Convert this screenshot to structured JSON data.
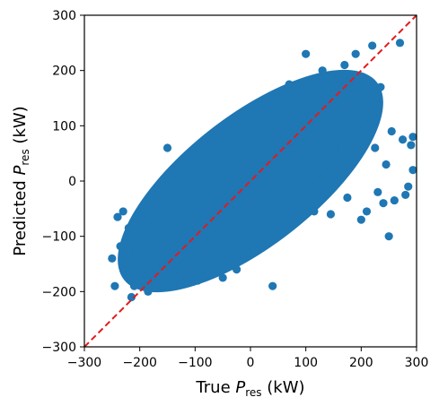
{
  "chart_data": {
    "type": "scatter",
    "title": "",
    "xlabel": {
      "prefix": "True ",
      "var": "P",
      "sub": "res",
      "suffix": " (kW)"
    },
    "ylabel": {
      "prefix": "Predicted ",
      "var": "P",
      "sub": "res",
      "suffix": " (kW)"
    },
    "xlim": [
      -300,
      300
    ],
    "ylim": [
      -300,
      300
    ],
    "xticks": [
      -300,
      -200,
      -100,
      0,
      100,
      200,
      300
    ],
    "yticks": [
      -300,
      -200,
      -100,
      0,
      100,
      200,
      300
    ],
    "xtick_labels": [
      "−300",
      "−200",
      "−100",
      "0",
      "100",
      "200",
      "300"
    ],
    "ytick_labels": [
      "−300",
      "−200",
      "−100",
      "0",
      "100",
      "200",
      "300"
    ],
    "grid": false,
    "point_color": "#1f77b4",
    "reference_line": {
      "from": [
        -300,
        -300
      ],
      "to": [
        300,
        300
      ],
      "style": "dashed",
      "color": "#e41a1c"
    },
    "series": [
      {
        "points": [
          [
            -250,
            -140
          ],
          [
            -245,
            -190
          ],
          [
            -240,
            -65
          ],
          [
            -235,
            -118
          ],
          [
            -230,
            -55
          ],
          [
            -225,
            -150
          ],
          [
            -220,
            -85
          ],
          [
            -215,
            -210
          ],
          [
            -210,
            -190
          ],
          [
            -205,
            -130
          ],
          [
            -200,
            -100
          ],
          [
            -200,
            -165
          ],
          [
            -195,
            -60
          ],
          [
            -190,
            -110
          ],
          [
            -185,
            -200
          ],
          [
            -185,
            -140
          ],
          [
            -180,
            -125
          ],
          [
            -175,
            -80
          ],
          [
            -170,
            -160
          ],
          [
            -165,
            -35
          ],
          [
            -160,
            -190
          ],
          [
            -155,
            -100
          ],
          [
            -150,
            60
          ],
          [
            -145,
            -150
          ],
          [
            -140,
            -120
          ],
          [
            -135,
            -30
          ],
          [
            -130,
            -175
          ],
          [
            -125,
            -70
          ],
          [
            -120,
            -150
          ],
          [
            -115,
            10
          ],
          [
            -110,
            -130
          ],
          [
            -105,
            -95
          ],
          [
            -100,
            45
          ],
          [
            -95,
            -180
          ],
          [
            -90,
            -60
          ],
          [
            -85,
            -160
          ],
          [
            -80,
            20
          ],
          [
            -75,
            -110
          ],
          [
            -70,
            -10
          ],
          [
            -65,
            -150
          ],
          [
            -60,
            85
          ],
          [
            -55,
            -90
          ],
          [
            -50,
            -175
          ],
          [
            -45,
            35
          ],
          [
            -40,
            -130
          ],
          [
            -35,
            65
          ],
          [
            -30,
            -55
          ],
          [
            -25,
            -160
          ],
          [
            -20,
            100
          ],
          [
            -15,
            -85
          ],
          [
            -10,
            25
          ],
          [
            -5,
            -130
          ],
          [
            0,
            70
          ],
          [
            5,
            -45
          ],
          [
            10,
            125
          ],
          [
            15,
            -110
          ],
          [
            20,
            40
          ],
          [
            25,
            -65
          ],
          [
            30,
            135
          ],
          [
            35,
            -20
          ],
          [
            40,
            -190
          ],
          [
            45,
            85
          ],
          [
            50,
            -30
          ],
          [
            55,
            150
          ],
          [
            60,
            -85
          ],
          [
            65,
            40
          ],
          [
            70,
            175
          ],
          [
            75,
            -40
          ],
          [
            80,
            95
          ],
          [
            85,
            -65
          ],
          [
            90,
            155
          ],
          [
            95,
            10
          ],
          [
            100,
            230
          ],
          [
            105,
            -20
          ],
          [
            110,
            120
          ],
          [
            115,
            -55
          ],
          [
            120,
            160
          ],
          [
            125,
            35
          ],
          [
            130,
            200
          ],
          [
            135,
            -25
          ],
          [
            140,
            90
          ],
          [
            145,
            -60
          ],
          [
            150,
            145
          ],
          [
            155,
            0
          ],
          [
            160,
            190
          ],
          [
            165,
            60
          ],
          [
            170,
            210
          ],
          [
            175,
            -30
          ],
          [
            180,
            140
          ],
          [
            185,
            35
          ],
          [
            190,
            230
          ],
          [
            195,
            95
          ],
          [
            200,
            -70
          ],
          [
            205,
            165
          ],
          [
            210,
            -55
          ],
          [
            215,
            120
          ],
          [
            220,
            245
          ],
          [
            225,
            60
          ],
          [
            230,
            -20
          ],
          [
            235,
            170
          ],
          [
            240,
            -40
          ],
          [
            245,
            30
          ],
          [
            250,
            -100
          ],
          [
            255,
            90
          ],
          [
            260,
            -35
          ],
          [
            270,
            250
          ],
          [
            275,
            75
          ],
          [
            280,
            -25
          ],
          [
            285,
            -10
          ],
          [
            290,
            65
          ],
          [
            295,
            20
          ],
          [
            300,
            80
          ],
          [
            -95,
            -20
          ],
          [
            -60,
            -45
          ],
          [
            -40,
            0
          ],
          [
            -20,
            -30
          ],
          [
            0,
            15
          ],
          [
            20,
            0
          ],
          [
            40,
            30
          ],
          [
            60,
            20
          ],
          [
            80,
            60
          ],
          [
            -80,
            -60
          ]
        ]
      }
    ]
  }
}
